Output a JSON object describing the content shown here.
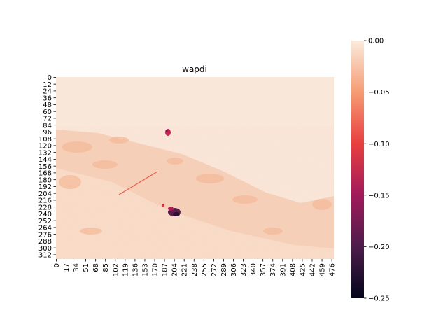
{
  "chart_data": {
    "type": "heatmap",
    "title": "wapdi",
    "xlabel": "",
    "ylabel": "",
    "x_tick_labels": [
      "0",
      "17",
      "34",
      "51",
      "68",
      "85",
      "102",
      "119",
      "136",
      "153",
      "170",
      "187",
      "204",
      "221",
      "238",
      "255",
      "272",
      "289",
      "306",
      "323",
      "340",
      "357",
      "374",
      "391",
      "408",
      "425",
      "442",
      "459",
      "476"
    ],
    "y_tick_labels": [
      "0",
      "12",
      "24",
      "36",
      "48",
      "60",
      "72",
      "84",
      "96",
      "108",
      "120",
      "132",
      "144",
      "156",
      "168",
      "180",
      "192",
      "204",
      "216",
      "228",
      "240",
      "252",
      "264",
      "276",
      "288",
      "300",
      "312"
    ],
    "x_range": [
      0,
      480
    ],
    "y_range": [
      0,
      320
    ],
    "colorbar": {
      "vmin": -0.25,
      "vmax": 0.0,
      "tick_labels": [
        "0.00",
        "−0.05",
        "−0.10",
        "−0.15",
        "−0.20",
        "−0.25"
      ],
      "tick_values": [
        0.0,
        -0.05,
        -0.1,
        -0.15,
        -0.2,
        -0.25
      ],
      "colormap": "rocket",
      "colors": [
        "#03051a",
        "#4c1d4b",
        "#a11a5b",
        "#e83f3f",
        "#f69c73",
        "#faebdd"
      ]
    },
    "description_features": {
      "background_value": -0.005,
      "lower_region_value": -0.04,
      "highlight_min": -0.25
    }
  }
}
